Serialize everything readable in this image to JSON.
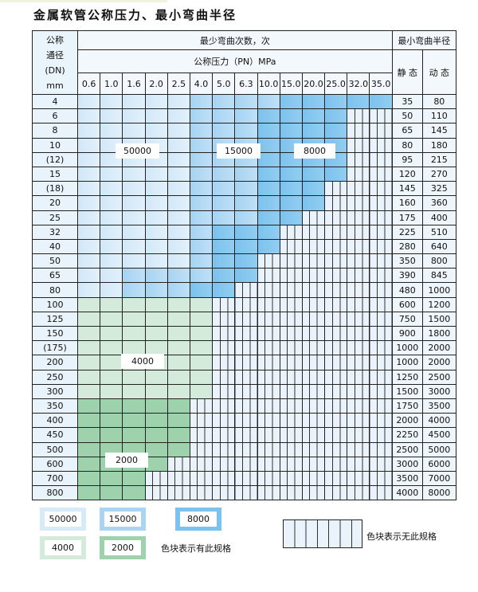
{
  "title": "金属软管公称压力、最小弯曲半径",
  "header": {
    "dn_lines": [
      "公称",
      "通径",
      "(DN)",
      "mm"
    ],
    "cycles": "最少弯曲次数，次",
    "pressure": "公称压力（PN）MPa",
    "radius": "最小弯曲半径",
    "static": "静 态",
    "dynamic": "动 态",
    "pressures": [
      "0.6",
      "1.0",
      "1.6",
      "2.0",
      "2.5",
      "4.0",
      "5.0",
      "6.3",
      "10.0",
      "15.0",
      "20.0",
      "25.0",
      "32.0",
      "35.0"
    ]
  },
  "fill_legend_codes": {
    "L": "50000",
    "M": "15000",
    "D": "8000",
    "G": "4000",
    "K": "2000",
    "H": "色块表示无此规格"
  },
  "colors": {
    "L": "#d2e8f8",
    "M": "#a6d3f2",
    "D": "#7cc2ee",
    "G": "#d4eadb",
    "K": "#9ed2ad",
    "H": "#eaf3fb"
  },
  "rows": [
    {
      "dn": "4",
      "static": "35",
      "dynamic": "80",
      "fill": "LLLLLMMMMDDDDD"
    },
    {
      "dn": "6",
      "static": "50",
      "dynamic": "110",
      "fill": "LLLLLMMMDDDDHH"
    },
    {
      "dn": "8",
      "static": "65",
      "dynamic": "145",
      "fill": "LLLLLMMMDDDDHH"
    },
    {
      "dn": "10",
      "static": "80",
      "dynamic": "180",
      "fill": "LLLLLMMMDDDDHH"
    },
    {
      "dn": "(12)",
      "static": "95",
      "dynamic": "215",
      "fill": "LLLLLMMMDDDDHH"
    },
    {
      "dn": "15",
      "static": "120",
      "dynamic": "270",
      "fill": "LLLLLMMMDDDDHH"
    },
    {
      "dn": "(18)",
      "static": "145",
      "dynamic": "325",
      "fill": "LLLLLMMMDDDHHH"
    },
    {
      "dn": "20",
      "static": "160",
      "dynamic": "360",
      "fill": "LLLLLMMMDDDHHH"
    },
    {
      "dn": "25",
      "static": "175",
      "dynamic": "400",
      "fill": "LLLLLMMMDDHHHH"
    },
    {
      "dn": "32",
      "static": "225",
      "dynamic": "510",
      "fill": "LLLLLMDDDHHHHH"
    },
    {
      "dn": "40",
      "static": "280",
      "dynamic": "640",
      "fill": "LLLLLMDDDHHHHH"
    },
    {
      "dn": "50",
      "static": "350",
      "dynamic": "800",
      "fill": "LLLLLMDDHHHHHH"
    },
    {
      "dn": "65",
      "static": "390",
      "dynamic": "845",
      "fill": "LLMMMMDDHHHHHH"
    },
    {
      "dn": "80",
      "static": "480",
      "dynamic": "1000",
      "fill": "LLMMMDDHHHHHHH"
    },
    {
      "dn": "100",
      "static": "600",
      "dynamic": "1200",
      "fill": "GGGGGGHHHHHHHH"
    },
    {
      "dn": "125",
      "static": "750",
      "dynamic": "1500",
      "fill": "GGGGGGHHHHHHHH"
    },
    {
      "dn": "150",
      "static": "900",
      "dynamic": "1800",
      "fill": "GGGGGGHHHHHHHH"
    },
    {
      "dn": "(175)",
      "static": "1000",
      "dynamic": "2000",
      "fill": "GGGGGGHHHHHHHH"
    },
    {
      "dn": "200",
      "static": "1000",
      "dynamic": "2000",
      "fill": "GGGGGGHHHHHHHH"
    },
    {
      "dn": "250",
      "static": "1250",
      "dynamic": "2500",
      "fill": "GGGGGGHHHHHHHH"
    },
    {
      "dn": "300",
      "static": "1500",
      "dynamic": "3000",
      "fill": "GGGGGGHHHHHHHH"
    },
    {
      "dn": "350",
      "static": "1750",
      "dynamic": "3500",
      "fill": "KKKKKHHHHHHHHH"
    },
    {
      "dn": "400",
      "static": "2000",
      "dynamic": "4000",
      "fill": "KKKKKHHHHHHHHH"
    },
    {
      "dn": "450",
      "static": "2250",
      "dynamic": "4500",
      "fill": "KKKKKHHHHHHHHH"
    },
    {
      "dn": "500",
      "static": "2500",
      "dynamic": "5000",
      "fill": "KKKKKHHHHHHHHH"
    },
    {
      "dn": "600",
      "static": "3000",
      "dynamic": "6000",
      "fill": "KKKKHHHHHHHHHH"
    },
    {
      "dn": "700",
      "static": "3500",
      "dynamic": "7000",
      "fill": "KKKHHHHHHHHHHH"
    },
    {
      "dn": "800",
      "static": "4000",
      "dynamic": "8000",
      "fill": "KKKHHHHHHHHHHH"
    }
  ],
  "region_labels": {
    "l50000": "50000",
    "l15000": "15000",
    "l8000": "8000",
    "l4000": "4000",
    "l2000": "2000"
  },
  "legend": {
    "items": [
      "50000",
      "15000",
      "8000",
      "4000",
      "2000"
    ],
    "has_spec": "色块表示有此规格",
    "no_spec": "色块表示无此规格"
  }
}
